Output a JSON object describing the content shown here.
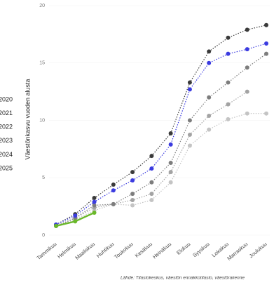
{
  "chart_data": {
    "type": "line",
    "y_label": "Väestönkasvu vuoden alusta",
    "source": "Lähde: Tilastokeskus, väestön ennakkotilasto, väestörakenne",
    "categories": [
      "Tammikuu",
      "Helmikuu",
      "Maaliskuu",
      "Huhtikuu",
      "Toukokuu",
      "Kesäkuu",
      "Heinäkuu",
      "Elokuu",
      "Syyskuu",
      "Lokakuu",
      "Marraskuu",
      "Joulukuu"
    ],
    "ylim": [
      0,
      20
    ],
    "yticks": [
      0,
      5,
      10,
      15,
      20
    ],
    "series": [
      {
        "name": "2020",
        "color": "#c4c4c4",
        "values": [
          0.8,
          1.35,
          2.14,
          2.7,
          2.6,
          3.06,
          4.6,
          7.8,
          9.2,
          10.1,
          10.6,
          10.6
        ]
      },
      {
        "name": "2021",
        "color": "#a3a3a3",
        "values": [
          0.8,
          1.47,
          2.4,
          2.7,
          3.06,
          3.6,
          5.5,
          8.75,
          10.4,
          11.4,
          12.5,
          null
        ]
      },
      {
        "name": "2022",
        "color": "#7d7d7d",
        "values": [
          0.8,
          1.5,
          2.6,
          2.7,
          3.6,
          4.6,
          6.3,
          10.0,
          12.0,
          13.3,
          14.6,
          15.8
        ]
      },
      {
        "name": "2023",
        "color": "#3a3a3a",
        "values": [
          0.92,
          1.83,
          3.24,
          4.4,
          5.5,
          6.9,
          8.87,
          13.3,
          16.0,
          17.2,
          17.9,
          18.3
        ]
      },
      {
        "name": "2024",
        "color": "#3b3be0",
        "values": [
          0.92,
          1.7,
          2.9,
          3.9,
          4.77,
          5.8,
          7.9,
          12.7,
          15.0,
          15.8,
          16.2,
          16.7
        ]
      },
      {
        "name": "2025",
        "color": "#6ab82a",
        "values": [
          0.8,
          1.2,
          1.96,
          null,
          null,
          null,
          null,
          null,
          null,
          null,
          null,
          null
        ]
      }
    ]
  }
}
